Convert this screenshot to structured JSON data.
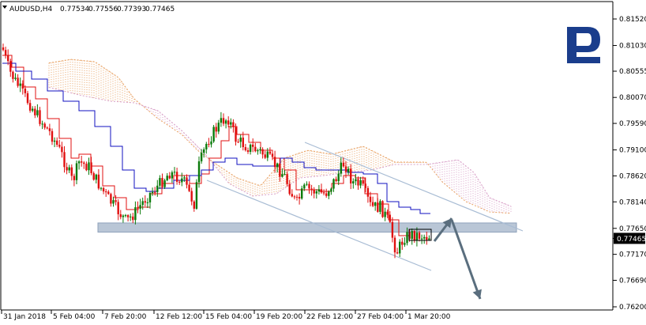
{
  "chart_data": {
    "type": "candlestick",
    "header": {
      "symbol_timeframe": "AUDUSD,H4",
      "values": [
        "0.77534",
        "0.77556",
        "0.77393",
        "0.77465"
      ]
    },
    "current_price": 0.77465,
    "current_price_label": "0.77465",
    "ylim": [
      0.7615,
      0.8175
    ],
    "y_ticks": [
      0.8152,
      0.8103,
      0.80555,
      0.8007,
      0.7959,
      0.791,
      0.7862,
      0.7814,
      0.7765,
      0.7717,
      0.7669,
      0.762
    ],
    "y_tick_labels": [
      "0.81520",
      "0.81030",
      "0.80555",
      "0.80070",
      "0.79590",
      "0.79100",
      "0.78620",
      "0.78140",
      "0.77650",
      "0.77170",
      "0.76690",
      "0.76200"
    ],
    "x_tick_labels": [
      "31 Jan 2018",
      "5 Feb 04:00",
      "7 Feb 20:00",
      "12 Feb 12:00",
      "15 Feb 04:00",
      "19 Feb 20:00",
      "22 Feb 12:00",
      "27 Feb 04:00",
      "1 Mar 20:00"
    ],
    "colors": {
      "bull": "#0a7a0a",
      "bear": "#e01010",
      "tenkan": "#e01010",
      "kijun": "#1010c0",
      "cloud_a": "#e8a060",
      "cloud_b": "#d8a0c8",
      "channel": "#a8bcd4",
      "zone": "#a8b8cc",
      "arrow": "#5a6e7e",
      "price_tag": "#000000",
      "logo": "#1a3d8c"
    },
    "support_zone": [
      0.7758,
      0.7775
    ],
    "brand_mark": "logo-mark"
  }
}
